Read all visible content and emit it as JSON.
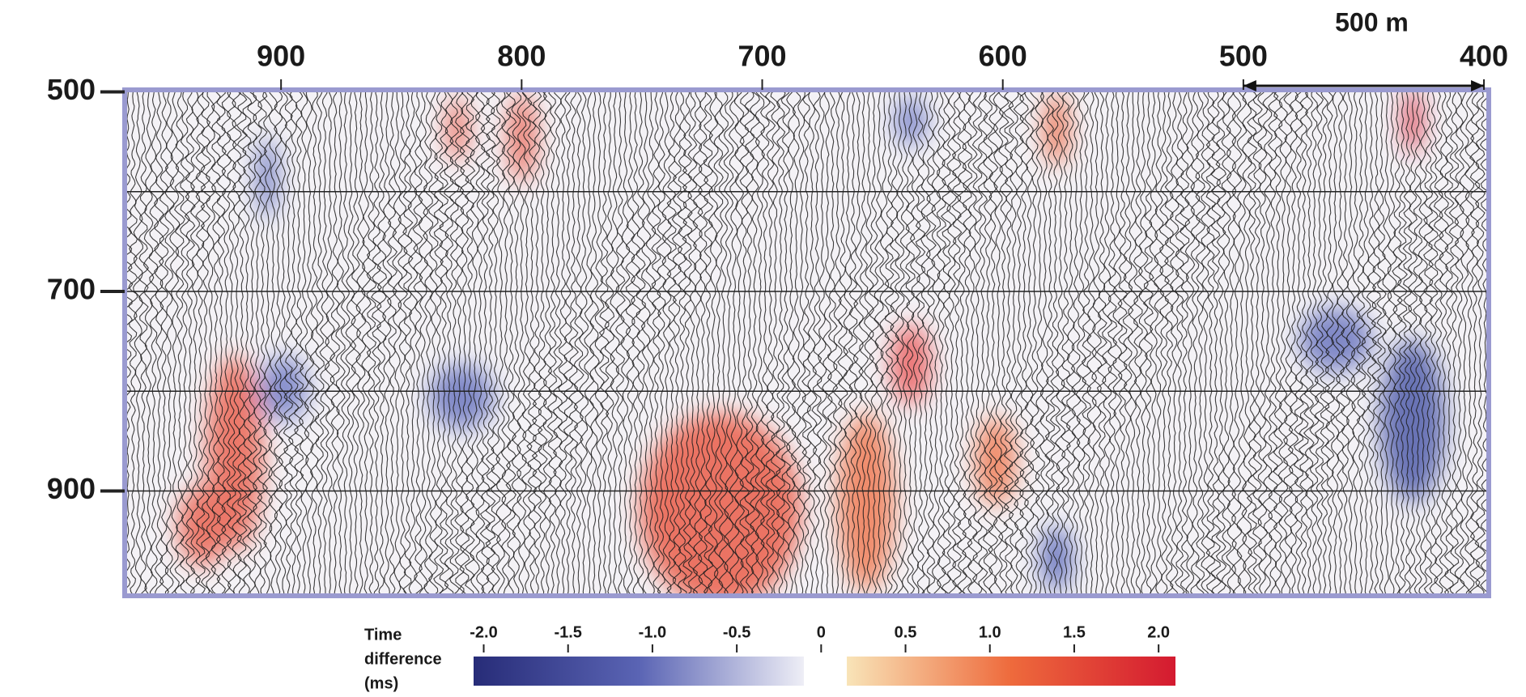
{
  "chart_data": {
    "type": "seismic",
    "xlim": [
      965,
      398
    ],
    "xticks": [
      900,
      800,
      700,
      600,
      500,
      400
    ],
    "ylim": [
      498,
      1005
    ],
    "yticks": [
      500,
      700,
      900
    ],
    "grid_lines": [
      600,
      700,
      800,
      900
    ],
    "scale_bar": {
      "label": "500 m",
      "from": 500,
      "to": 400
    },
    "colorbar": {
      "label": [
        "Time",
        "difference",
        "(ms)"
      ],
      "clim": [
        -2.06,
        2.1
      ],
      "ticks": [
        {
          "value": -2,
          "label": "-2.0"
        },
        {
          "value": -1.5,
          "label": "-1.5"
        },
        {
          "value": -1,
          "label": "-1.0"
        },
        {
          "value": -0.5,
          "label": "-0.5"
        },
        0,
        {
          "value": 0.5,
          "label": "0.5"
        },
        {
          "value": 1,
          "label": "1.0"
        },
        {
          "value": 1.5,
          "label": "1.5"
        },
        {
          "value": 2,
          "label": "2.0"
        }
      ],
      "negative_colors": [
        "#272c78",
        "#5a64b4",
        "#eeeef6"
      ],
      "positive_colors": [
        "#f8e4b8",
        "#ee6a3c",
        "#d41a30"
      ]
    }
  }
}
